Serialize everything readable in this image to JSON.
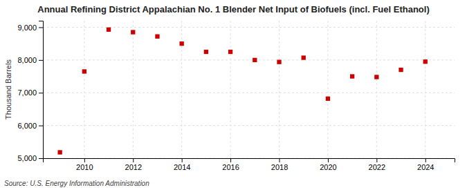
{
  "chart_data": {
    "type": "scatter",
    "title": "Annual Refining District Appalachian No. 1 Blender Net Input of Biofuels (incl. Fuel Ethanol)",
    "y_label": "Thousand Barrels",
    "annotations": [
      "Source: U.S. Energy Information Administration"
    ],
    "x": [
      2009,
      2010,
      2011,
      2012,
      2013,
      2014,
      2015,
      2016,
      2017,
      2018,
      2019,
      2020,
      2021,
      2022,
      2023,
      2024
    ],
    "values": [
      5180,
      7650,
      8930,
      8850,
      8720,
      8500,
      8250,
      8250,
      8000,
      7940,
      8070,
      6820,
      7500,
      7480,
      7700,
      7950
    ],
    "color": "#cc0000",
    "marker": "square",
    "xlim": [
      2008.3,
      2025.2
    ],
    "xticks": [
      2010,
      2012,
      2014,
      2016,
      2018,
      2020,
      2022,
      2024
    ],
    "ylim": [
      5000,
      9200
    ],
    "yticks": [
      {
        "value": 5000,
        "label": "5,000"
      },
      {
        "value": 6000,
        "label": "6,000"
      },
      {
        "value": 7000,
        "label": "7,000"
      },
      {
        "value": 8000,
        "label": "8,000"
      },
      {
        "value": 9000,
        "label": "9,000"
      }
    ],
    "grid": true
  }
}
